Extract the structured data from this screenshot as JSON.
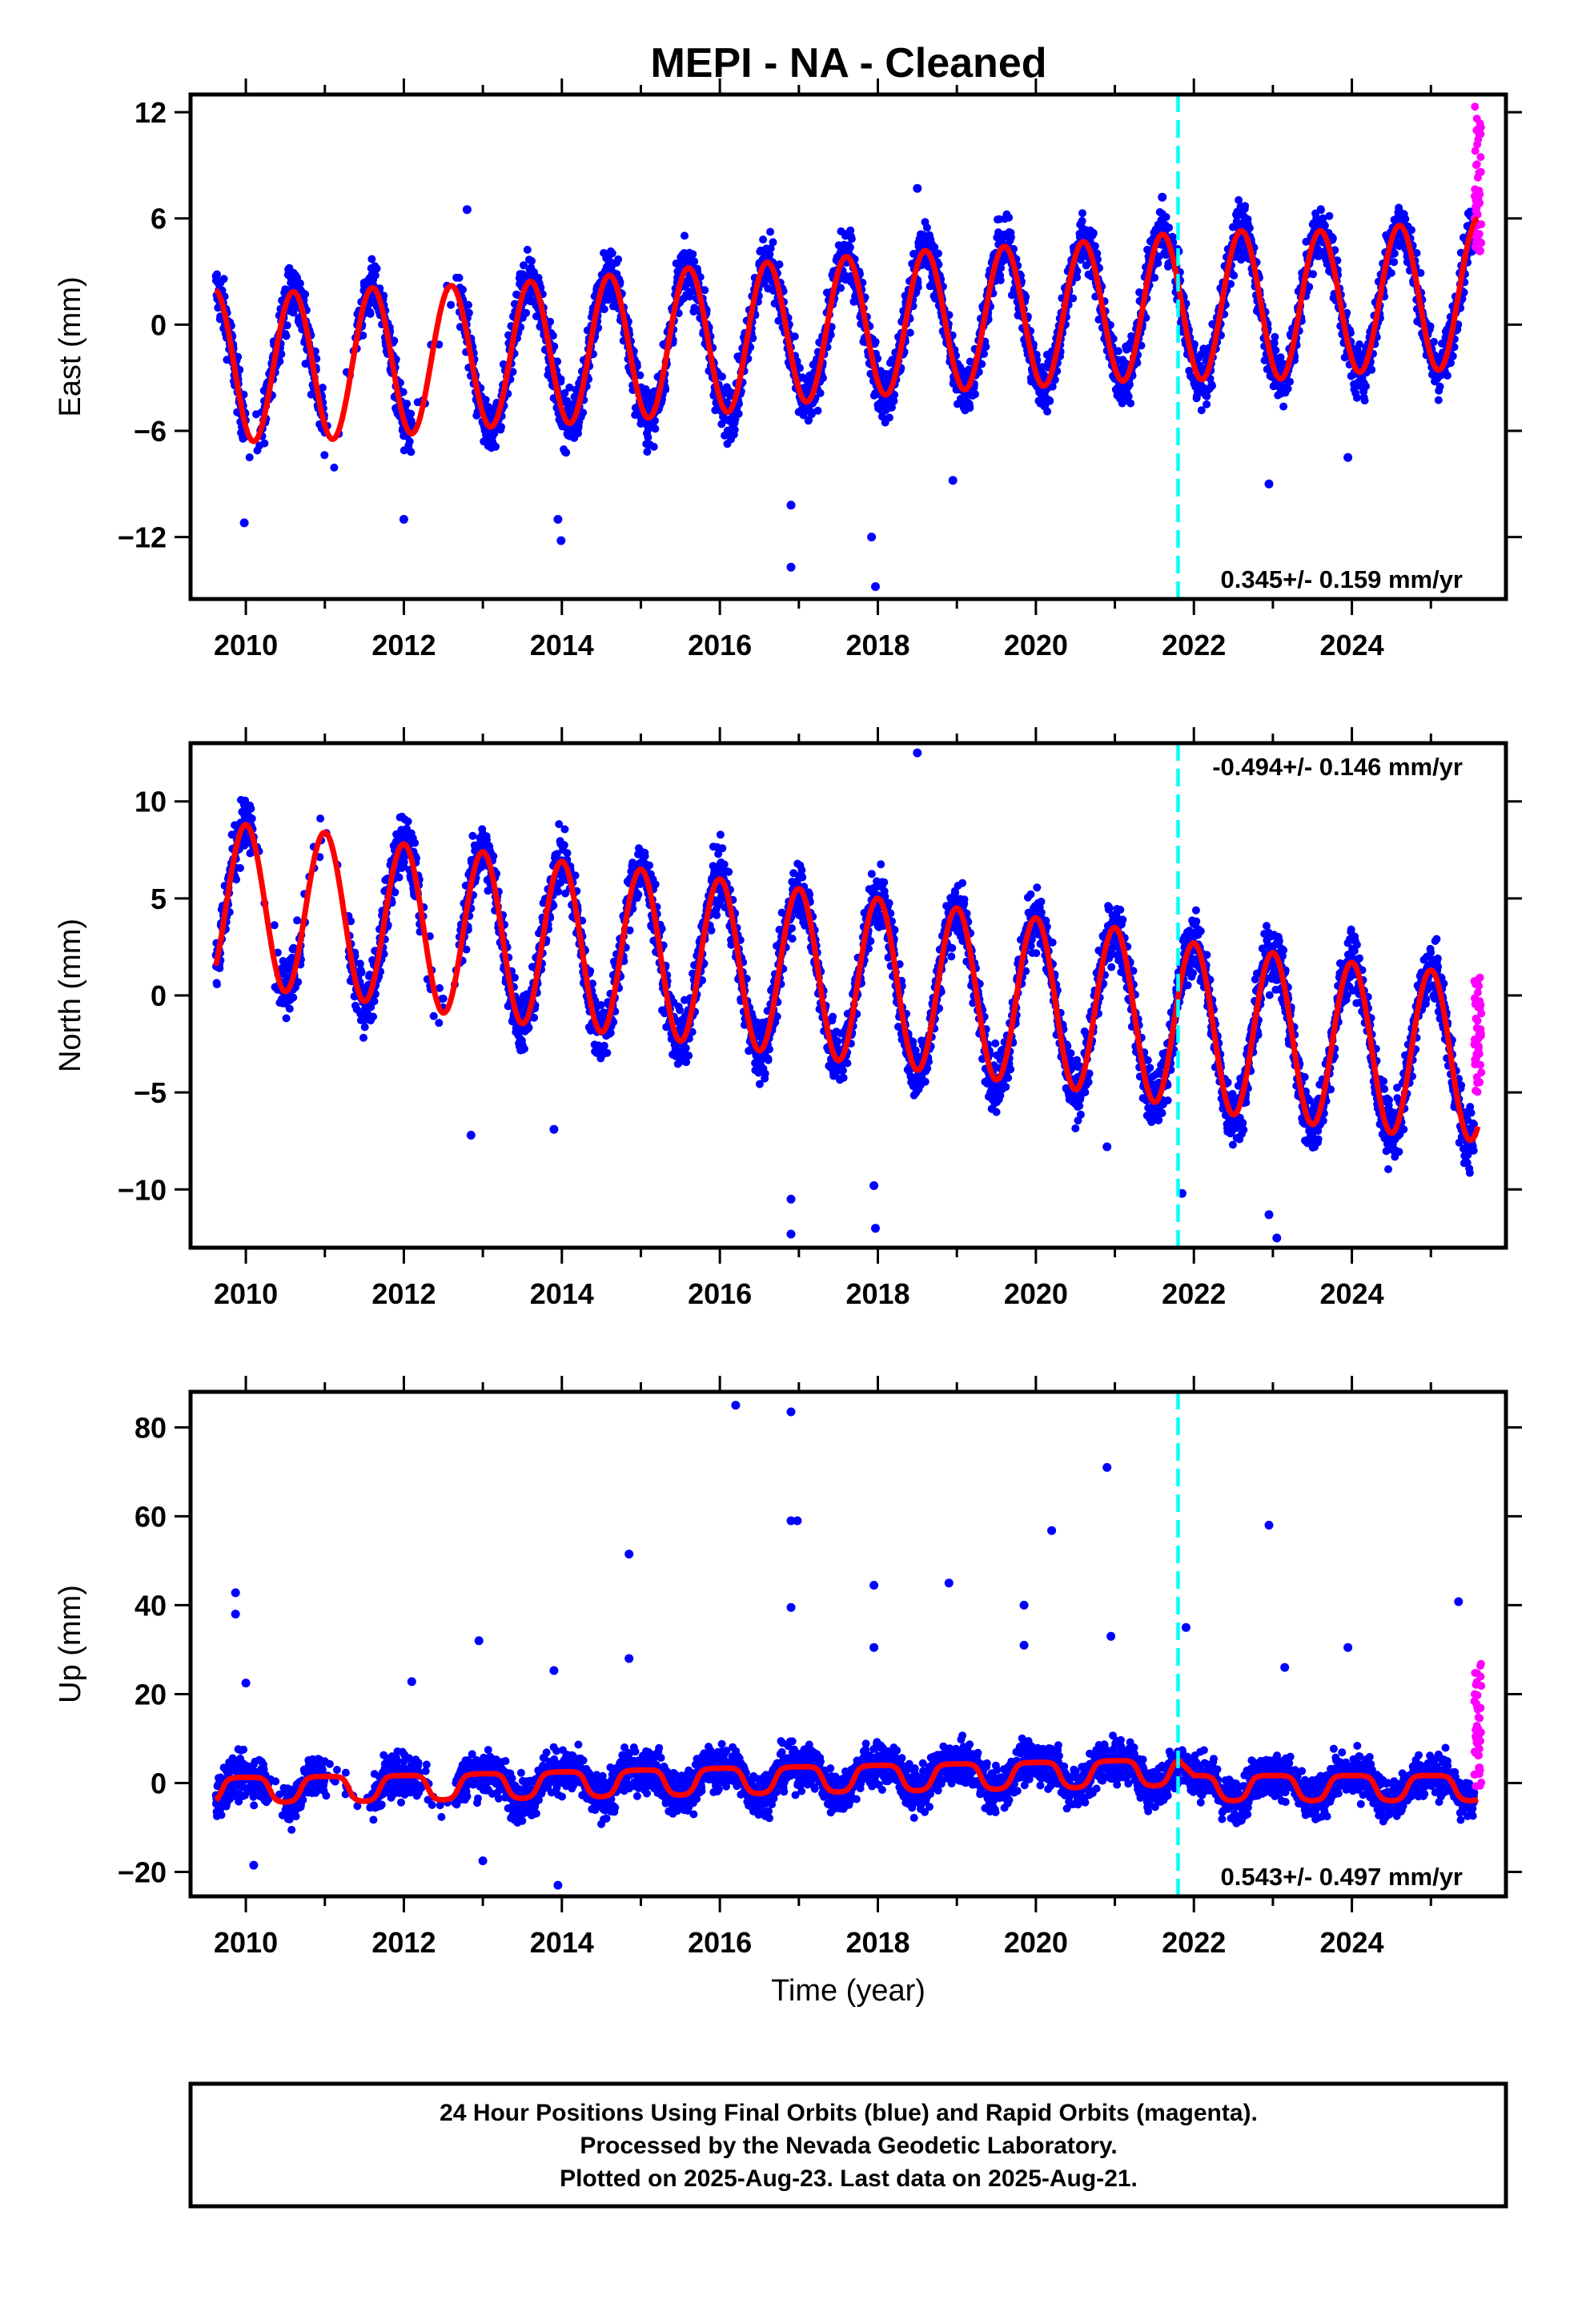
{
  "title": "MEPI  - NA - Cleaned",
  "footer": {
    "lines": [
      "24 Hour Positions Using Final Orbits (blue) and Rapid Orbits (magenta).",
      "Processed by the Nevada Geodetic Laboratory.",
      "Plotted on 2025-Aug-23. Last data on 2025-Aug-21."
    ]
  },
  "colors": {
    "final_points": "#0000ff",
    "rapid_points": "#ff00ff",
    "model_line": "#ff0000",
    "event_line": "#00ffff",
    "frame": "#000000"
  },
  "chart_data": [
    {
      "type": "scatter",
      "component": "east",
      "ylabel": "East (mm)",
      "xlabel": "",
      "xlim": [
        2009.3,
        2025.95
      ],
      "ylim": [
        -15.5,
        13.0
      ],
      "xticks": [
        2010,
        2012,
        2014,
        2016,
        2018,
        2020,
        2022,
        2024
      ],
      "xtick_labels": [
        "2010",
        "2012",
        "2014",
        "2016",
        "2018",
        "2020",
        "2022",
        "2024"
      ],
      "yticks": [
        -12,
        -6,
        0,
        6,
        12
      ],
      "ytick_labels": [
        "−12",
        "−6",
        "0",
        "6",
        "12"
      ],
      "rate_label": "0.345+/- 0.159 mm/yr",
      "rate_position": "bottom-right",
      "event_line_x": 2021.8,
      "model": {
        "series_name": "model",
        "start": 2009.62,
        "end": 2025.6,
        "knots_x": [
          2009.62,
          2010.0,
          2011.0,
          2012.0,
          2013.0,
          2014.0,
          2015.0,
          2016.0,
          2017.0,
          2018.0,
          2019.0,
          2020.0,
          2021.0,
          2022.0,
          2023.0,
          2024.0,
          2025.0,
          2025.6
        ],
        "offset": [
          -2.0,
          -2.4,
          -2.3,
          -2.0,
          -1.8,
          -1.5,
          -1.2,
          -0.8,
          -0.4,
          0.0,
          0.3,
          0.5,
          0.8,
          1.1,
          1.1,
          1.3,
          1.6,
          1.8
        ],
        "amplitude": [
          4.0,
          4.2,
          4.2,
          4.2,
          4.0,
          4.1,
          4.1,
          4.2,
          4.0,
          4.0,
          4.0,
          4.0,
          4.0,
          4.2,
          4.2,
          4.0,
          4.2,
          4.2
        ],
        "annual_phase": 0.6
      },
      "final_data": {
        "start": 2009.62,
        "end": 2025.55,
        "gaps": [
          [
            2010.0,
            2010.2
          ],
          [
            2011.0,
            2011.4
          ],
          [
            2012.1,
            2012.7
          ]
        ],
        "scatter_sd": 1.3
      },
      "rapid_data": {
        "start": 2025.55,
        "end": 2025.64,
        "range": [
          4.0,
          12.5
        ]
      },
      "outliers": [
        [
          2009.98,
          -11.2
        ],
        [
          2012.0,
          -11.0
        ],
        [
          2013.99,
          -12.2
        ],
        [
          2013.95,
          -11.0
        ],
        [
          2016.9,
          -13.7
        ],
        [
          2016.9,
          -10.2
        ],
        [
          2017.97,
          -14.8
        ],
        [
          2017.92,
          -12.0
        ],
        [
          2018.95,
          -8.8
        ],
        [
          2022.95,
          -9.0
        ],
        [
          2023.95,
          -7.5
        ],
        [
          2012.8,
          6.5
        ],
        [
          2018.5,
          7.7
        ],
        [
          2021.6,
          7.2
        ]
      ]
    },
    {
      "type": "scatter",
      "component": "north",
      "ylabel": "North (mm)",
      "xlabel": "",
      "xlim": [
        2009.3,
        2025.95
      ],
      "ylim": [
        -13.0,
        13.0
      ],
      "xticks": [
        2010,
        2012,
        2014,
        2016,
        2018,
        2020,
        2022,
        2024
      ],
      "xtick_labels": [
        "2010",
        "2012",
        "2014",
        "2016",
        "2018",
        "2020",
        "2022",
        "2024"
      ],
      "yticks": [
        -10,
        -5,
        0,
        5,
        10
      ],
      "ytick_labels": [
        "−10",
        "−5",
        "0",
        "5",
        "10"
      ],
      "rate_label": "-0.494+/- 0.146 mm/yr",
      "rate_position": "top-right",
      "event_line_x": 2021.8,
      "model": {
        "series_name": "model",
        "start": 2009.62,
        "end": 2025.6,
        "knots_x": [
          2009.62,
          2010.0,
          2011.0,
          2012.0,
          2013.0,
          2014.0,
          2015.0,
          2016.0,
          2017.0,
          2018.0,
          2019.0,
          2020.0,
          2021.0,
          2022.0,
          2023.0,
          2024.0,
          2025.0,
          2025.6
        ],
        "offset": [
          4.6,
          4.6,
          4.2,
          3.6,
          3.1,
          2.6,
          2.2,
          1.7,
          1.2,
          0.7,
          0.2,
          -0.3,
          -0.8,
          -1.6,
          -2.1,
          -2.6,
          -3.0,
          -3.2
        ],
        "amplitude": [
          4.2,
          4.2,
          4.2,
          4.2,
          4.3,
          4.3,
          4.3,
          4.3,
          4.3,
          4.3,
          4.3,
          4.3,
          4.3,
          4.3,
          4.3,
          4.3,
          4.3,
          4.3
        ],
        "annual_phase": 0.0
      },
      "final_data": {
        "start": 2009.62,
        "end": 2025.55,
        "gaps": [
          [
            2010.1,
            2010.4
          ],
          [
            2010.7,
            2011.3
          ],
          [
            2012.2,
            2012.7
          ]
        ],
        "scatter_sd": 1.3
      },
      "rapid_data": {
        "start": 2025.55,
        "end": 2025.64,
        "range": [
          -5.0,
          1.0
        ]
      },
      "outliers": [
        [
          2018.5,
          12.5
        ],
        [
          2016.9,
          -12.3
        ],
        [
          2016.9,
          -10.5
        ],
        [
          2017.97,
          -12.0
        ],
        [
          2017.95,
          -9.8
        ],
        [
          2013.9,
          -6.9
        ],
        [
          2012.85,
          -7.2
        ],
        [
          2022.95,
          -11.3
        ],
        [
          2023.05,
          -12.5
        ],
        [
          2021.85,
          -10.2
        ],
        [
          2020.9,
          -7.8
        ]
      ]
    },
    {
      "type": "scatter",
      "component": "up",
      "ylabel": "Up (mm)",
      "xlabel": "Time (year)",
      "xlim": [
        2009.3,
        2025.95
      ],
      "ylim": [
        -25.5,
        88.0
      ],
      "xticks": [
        2010,
        2012,
        2014,
        2016,
        2018,
        2020,
        2022,
        2024
      ],
      "xtick_labels": [
        "2010",
        "2012",
        "2014",
        "2016",
        "2018",
        "2020",
        "2022",
        "2024"
      ],
      "yticks": [
        -20,
        0,
        20,
        40,
        60,
        80
      ],
      "ytick_labels": [
        "−20",
        "0",
        "20",
        "40",
        "60",
        "80"
      ],
      "rate_label": "0.543+/- 0.497 mm/yr",
      "rate_position": "bottom-right",
      "event_line_x": 2021.8,
      "model": {
        "series_name": "model",
        "start": 2009.62,
        "end": 2025.6,
        "knots_x": [
          2009.62,
          2012.0,
          2016.0,
          2020.0,
          2021.8,
          2022.0,
          2025.6
        ],
        "offset": [
          -3.0,
          -2.5,
          -1.0,
          0.3,
          1.0,
          -2.5,
          -2.5
        ],
        "amplitude": [
          6.0,
          6.0,
          6.2,
          6.2,
          6.2,
          6.0,
          6.0
        ],
        "annual_phase": 0.0
      },
      "final_data": {
        "start": 2009.62,
        "end": 2025.55,
        "gaps": [
          [
            2010.3,
            2010.5
          ],
          [
            2011.0,
            2011.6
          ],
          [
            2012.2,
            2012.65
          ]
        ],
        "scatter_sd": 4.0
      },
      "rapid_data": {
        "start": 2025.55,
        "end": 2025.64,
        "range": [
          -2.0,
          27.0
        ]
      },
      "outliers": [
        [
          2009.87,
          42.8
        ],
        [
          2009.87,
          38.0
        ],
        [
          2010.0,
          22.5
        ],
        [
          2012.1,
          22.8
        ],
        [
          2012.95,
          32.0
        ],
        [
          2013.9,
          25.3
        ],
        [
          2014.85,
          51.5
        ],
        [
          2014.85,
          28.0
        ],
        [
          2016.2,
          85.0
        ],
        [
          2016.9,
          83.5
        ],
        [
          2016.9,
          59.0
        ],
        [
          2016.98,
          59.0
        ],
        [
          2016.9,
          39.5
        ],
        [
          2017.95,
          44.5
        ],
        [
          2017.95,
          30.5
        ],
        [
          2018.9,
          45.0
        ],
        [
          2019.85,
          40.0
        ],
        [
          2019.85,
          31.0
        ],
        [
          2020.2,
          56.8
        ],
        [
          2020.9,
          71.0
        ],
        [
          2020.95,
          33.0
        ],
        [
          2022.95,
          58.0
        ],
        [
          2023.15,
          26.0
        ],
        [
          2023.95,
          30.5
        ],
        [
          2025.35,
          40.8
        ],
        [
          2021.9,
          35.0
        ],
        [
          2013.95,
          -23.0
        ],
        [
          2010.1,
          -18.5
        ],
        [
          2013.0,
          -17.5
        ]
      ]
    }
  ]
}
